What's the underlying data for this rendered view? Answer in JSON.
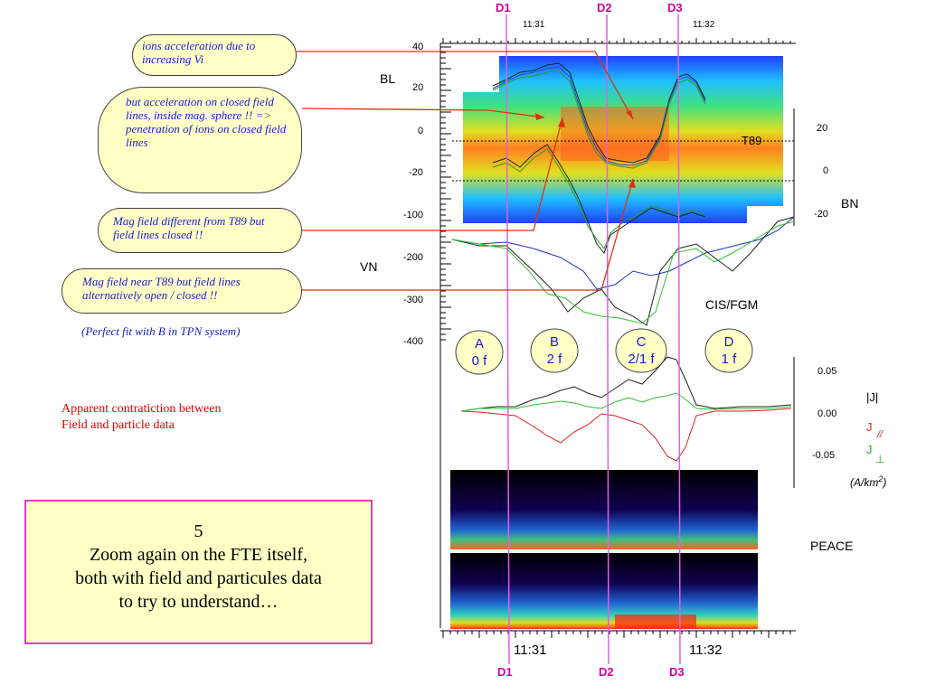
{
  "bubbles": {
    "b1": "ions acceleration due to increasing Vi",
    "b2": "but acceleration  on closed field lines, inside mag. sphere !! => penetration of ions  on closed field lines",
    "b3": "Mag field different from T89 but field lines closed !!",
    "b4": "Mag field near T89 but field lines alternatively open / closed !!"
  },
  "notes": {
    "perfect_fit": "(Perfect fit with B in TPN system)",
    "contradiction_1": "Apparent contratiction between",
    "contradiction_2": "Field and particle data"
  },
  "box5": {
    "num": "5",
    "line1": "Zoom again on the FTE itself,",
    "line2": "both with field and particules data",
    "line3": "to try to understand…"
  },
  "markers": {
    "d1": "D1",
    "d2": "D2",
    "d3": "D3"
  },
  "time_labels": {
    "top_1131": "11:31",
    "top_1132": "11:32",
    "bot_1131": "11:31",
    "bot_1132": "11:32"
  },
  "panel_labels": {
    "bl": "BL",
    "vn": "VN",
    "bn": "BN",
    "t89": "T89",
    "cis_fgm": "CIS/FGM",
    "peace": "PEACE",
    "j_abs": "|J|",
    "j": "J",
    "j_par_sub": "//",
    "j_perp_sub": "⊥",
    "units": "(A/km",
    "units_sup": "2",
    "units_close": ")"
  },
  "left_ticks": [
    "40",
    "20",
    "0",
    "-20",
    "-100",
    "-200",
    "-300",
    "-400"
  ],
  "right_bn_ticks": [
    "20",
    "0",
    "-20"
  ],
  "j_ticks": [
    "0.05",
    "0.00",
    "-0.05"
  ],
  "regions": [
    {
      "letter": "A",
      "sub": "0 f"
    },
    {
      "letter": "B",
      "sub": "2 f"
    },
    {
      "letter": "C",
      "sub": "2/1 f"
    },
    {
      "letter": "D",
      "sub": "1 f"
    }
  ],
  "colors": {
    "marker_line": "#e060e0",
    "marker_text": "#d000a0",
    "arrow_red": "#e03010",
    "text_blue": "#1a1ad0",
    "bubble_fill": "#ffffc6"
  }
}
